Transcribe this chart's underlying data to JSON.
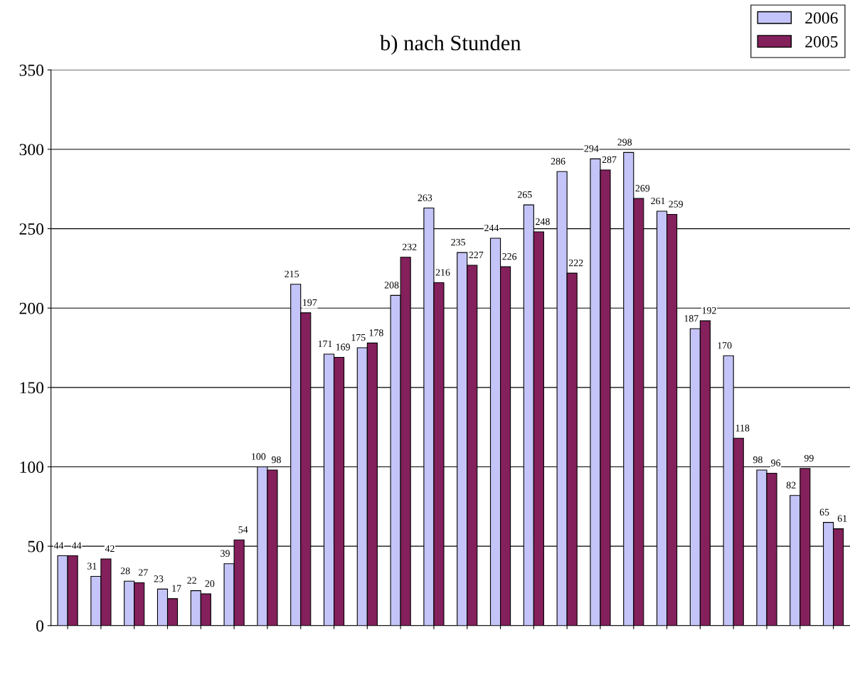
{
  "chart_data": {
    "type": "bar",
    "title": "b) nach Stunden",
    "categories": [
      null,
      null,
      null,
      null,
      null,
      null,
      null,
      null,
      null,
      null,
      null,
      null,
      null,
      null,
      null,
      null,
      null,
      null,
      null,
      null,
      null,
      null,
      null,
      null
    ],
    "series": [
      {
        "name": "2006",
        "color": "#c4c4f8",
        "values": [
          44,
          31,
          28,
          23,
          22,
          39,
          100,
          215,
          171,
          175,
          208,
          263,
          235,
          244,
          265,
          286,
          294,
          298,
          261,
          187,
          170,
          98,
          82,
          65
        ]
      },
      {
        "name": "2005",
        "color": "#84205c",
        "values": [
          44,
          42,
          27,
          17,
          20,
          54,
          98,
          197,
          169,
          178,
          232,
          216,
          227,
          226,
          248,
          222,
          287,
          269,
          259,
          192,
          118,
          96,
          99,
          61
        ]
      }
    ],
    "ylim": [
      0,
      350
    ],
    "yticks": [
      0,
      50,
      100,
      150,
      200,
      250,
      300,
      350
    ],
    "grid": "y",
    "legend": "top right",
    "data_labels": true
  }
}
